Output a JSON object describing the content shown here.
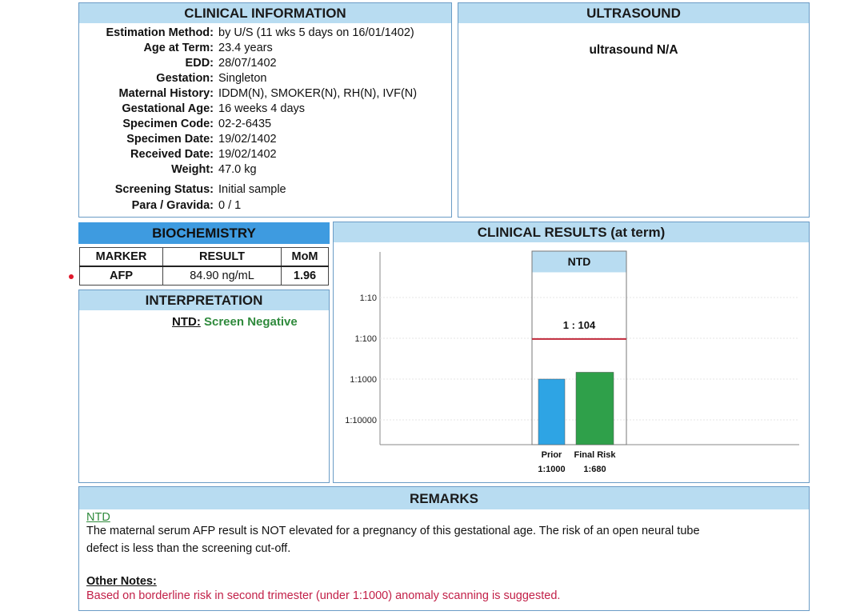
{
  "clinical_info": {
    "title": "CLINICAL INFORMATION",
    "rows": [
      {
        "label": "Estimation Method:",
        "value": "by U/S (11 wks 5 days on 16/01/1402)"
      },
      {
        "label": "Age at Term:",
        "value": "23.4 years"
      },
      {
        "label": "EDD:",
        "value": "28/07/1402"
      },
      {
        "label": "Gestation:",
        "value": "Singleton"
      },
      {
        "label": "Maternal History:",
        "value": "IDDM(N), SMOKER(N), RH(N), IVF(N)"
      },
      {
        "label": "Gestational Age:",
        "value": "16 weeks 4 days"
      },
      {
        "label": "Specimen Code:",
        "value": "02-2-6435"
      },
      {
        "label": "Specimen Date:",
        "value": "19/02/1402"
      },
      {
        "label": "Received Date:",
        "value": "19/02/1402"
      },
      {
        "label": "Weight:",
        "value": "47.0 kg"
      },
      {
        "label": "Screening Status:",
        "value": "Initial sample"
      },
      {
        "label": "Para / Gravida:",
        "value": "0 / 1"
      }
    ]
  },
  "ultrasound": {
    "title": "ULTRASOUND",
    "text": "ultrasound N/A"
  },
  "biochemistry": {
    "title": "BIOCHEMISTRY",
    "headers": [
      "MARKER",
      "RESULT",
      "MoM"
    ],
    "rows": [
      {
        "marker": "AFP",
        "result": "84.90 ng/mL",
        "mom": "1.96"
      }
    ]
  },
  "interpretation": {
    "title": "INTERPRETATION",
    "label": "NTD:",
    "value": "Screen Negative"
  },
  "clinical_results": {
    "title": "CLINICAL RESULTS (at term)"
  },
  "chart_data": {
    "type": "bar",
    "title": "NTD",
    "scale": "log-reciprocal",
    "y_ticks": [
      "1:10",
      "1:100",
      "1:1000",
      "1:10000"
    ],
    "y_tick_denominators": [
      10,
      100,
      1000,
      10000
    ],
    "cutoff": {
      "label": "1 : 104",
      "denominator": 104,
      "color": "#c0283a"
    },
    "bars": [
      {
        "name": "Prior",
        "value_label": "1:1000",
        "denominator": 1000,
        "color": "#2ea4e4"
      },
      {
        "name": "Final Risk",
        "value_label": "1:680",
        "denominator": 680,
        "color": "#2fa04a"
      }
    ],
    "baseline_denominator": 50000
  },
  "remarks": {
    "title": "REMARKS",
    "ntd_heading": "NTD",
    "ntd_text_1": "The maternal serum AFP result is NOT elevated for a pregnancy of this gestational age.  The risk of an open neural tube",
    "ntd_text_2": "defect is less than the screening cut-off.",
    "other_heading": "Other Notes:",
    "other_text": "Based on borderline  risk in second  trimester (under 1:1000) anomaly  scanning is suggested."
  },
  "colors": {
    "header_light": "#b8dcf1",
    "header_dark": "#3e9be0",
    "positive_green": "#2f8a3c",
    "note_red": "#c22048",
    "marker_dot": "#e0182b"
  }
}
